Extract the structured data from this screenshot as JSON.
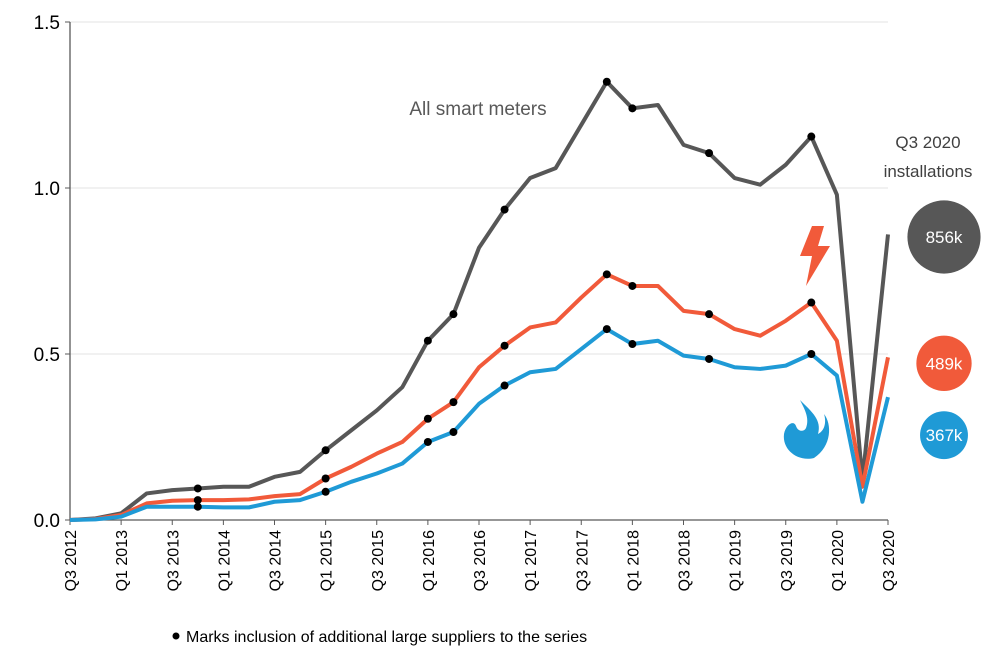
{
  "chart_data": {
    "type": "line",
    "categories": [
      "Q3 2012",
      null,
      "Q1 2013",
      null,
      "Q3 2013",
      null,
      "Q1 2014",
      null,
      "Q3 2014",
      null,
      "Q1 2015",
      null,
      "Q3 2015",
      null,
      "Q1 2016",
      null,
      "Q3 2016",
      null,
      "Q1 2017",
      null,
      "Q3 2017",
      null,
      "Q1 2018",
      null,
      "Q3 2018",
      null,
      "Q1 2019",
      null,
      "Q3 2019",
      null,
      "Q1 2020",
      null,
      "Q3 2020"
    ],
    "series": [
      {
        "name": "All smart meters",
        "color": "#575757",
        "end_value": 856,
        "end_label": "856k",
        "values": [
          0,
          0.005,
          0.02,
          0.08,
          0.09,
          0.095,
          0.1,
          0.1,
          0.13,
          0.145,
          0.21,
          0.27,
          0.33,
          0.4,
          0.54,
          0.62,
          0.82,
          0.935,
          1.03,
          1.06,
          1.19,
          1.32,
          1.24,
          1.25,
          1.13,
          1.105,
          1.03,
          1.01,
          1.07,
          1.155,
          0.98,
          0.12,
          0.86
        ]
      },
      {
        "color": "#f15a3a",
        "end_value": 489,
        "end_label": "489k",
        "values": [
          0,
          0.003,
          0.015,
          0.05,
          0.058,
          0.06,
          0.06,
          0.062,
          0.072,
          0.078,
          0.125,
          0.16,
          0.2,
          0.235,
          0.305,
          0.355,
          0.46,
          0.525,
          0.58,
          0.595,
          0.67,
          0.74,
          0.705,
          0.705,
          0.63,
          0.62,
          0.575,
          0.555,
          0.6,
          0.655,
          0.54,
          0.1,
          0.49
        ]
      },
      {
        "color": "#1f9ad6",
        "end_value": 367,
        "end_label": "367k",
        "values": [
          0,
          0.002,
          0.01,
          0.04,
          0.04,
          0.04,
          0.038,
          0.038,
          0.055,
          0.06,
          0.085,
          0.115,
          0.14,
          0.17,
          0.235,
          0.265,
          0.35,
          0.405,
          0.445,
          0.455,
          0.515,
          0.575,
          0.53,
          0.54,
          0.495,
          0.485,
          0.46,
          0.455,
          0.465,
          0.5,
          0.435,
          0.055,
          0.37
        ]
      }
    ],
    "markers": [
      5,
      10,
      14,
      15,
      17,
      21,
      22,
      25,
      29
    ],
    "marker_note": "Marks inclusion of additional large suppliers to the series",
    "end_title": "Q3 2020",
    "end_subtitle": "installations",
    "ylim": [
      0,
      1.5
    ],
    "yticks": [
      {
        "value": 0,
        "label": "0.0"
      },
      0.5,
      {
        "value": 1,
        "label": "1.0"
      },
      {
        "value": 1.5,
        "label": "1.5"
      }
    ],
    "grid": true
  }
}
